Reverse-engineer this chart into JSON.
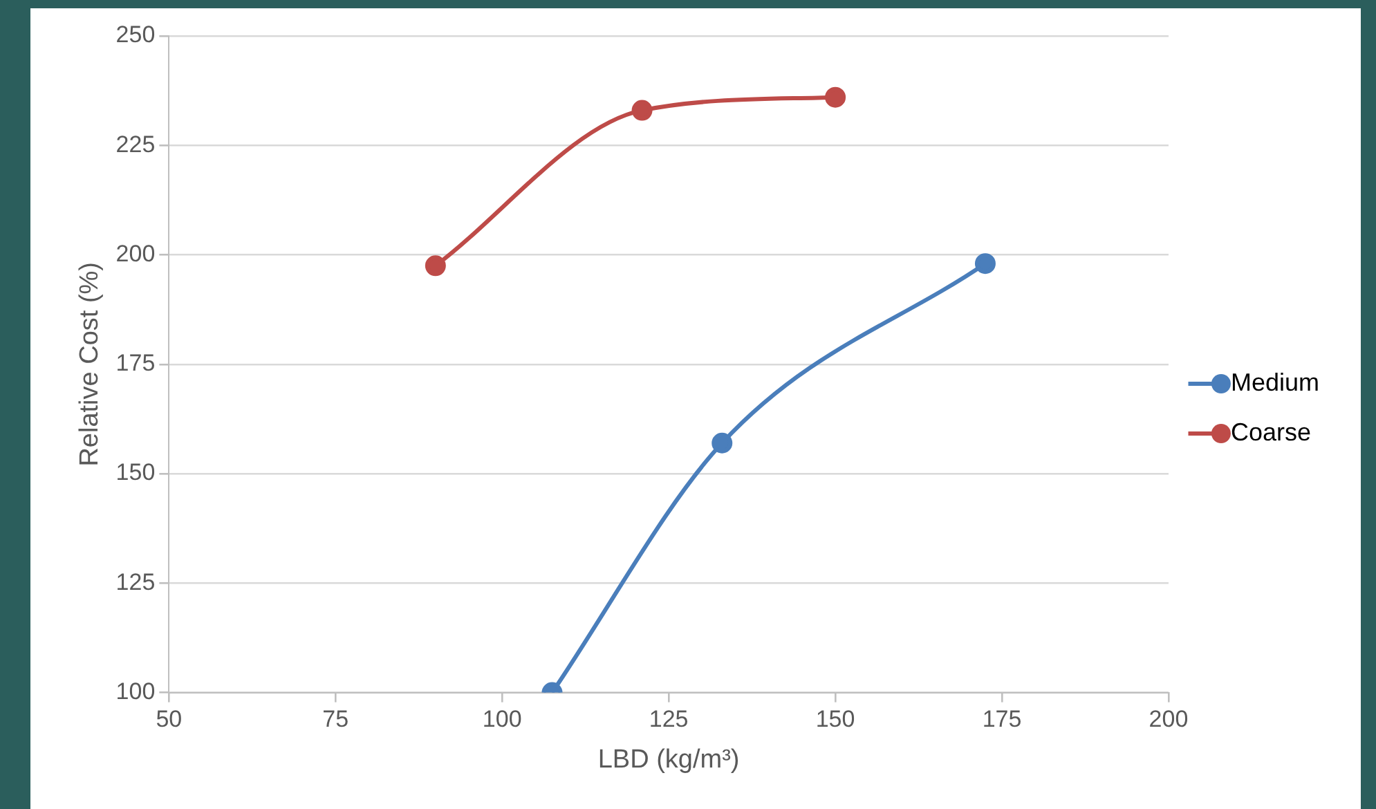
{
  "chart_data": {
    "type": "line",
    "xlabel": "LBD (kg/m³)",
    "ylabel": "Relative Cost (%)",
    "xlim": [
      50,
      200
    ],
    "xticks": [
      50,
      75,
      100,
      125,
      150,
      175,
      200
    ],
    "ylim": [
      100,
      250
    ],
    "yticks": [
      100,
      125,
      150,
      175,
      200,
      225,
      250
    ],
    "grid": "y",
    "legend": "right",
    "marker": "circle",
    "line_style": "solid",
    "series": [
      {
        "name": "Medium",
        "color": "#4a7ebb",
        "x": [
          107.5,
          133,
          172.5
        ],
        "values": [
          100,
          157,
          198
        ]
      },
      {
        "name": "Coarse",
        "color": "#be4b48",
        "x": [
          90,
          121,
          150
        ],
        "values": [
          197.5,
          233,
          236
        ]
      }
    ]
  }
}
